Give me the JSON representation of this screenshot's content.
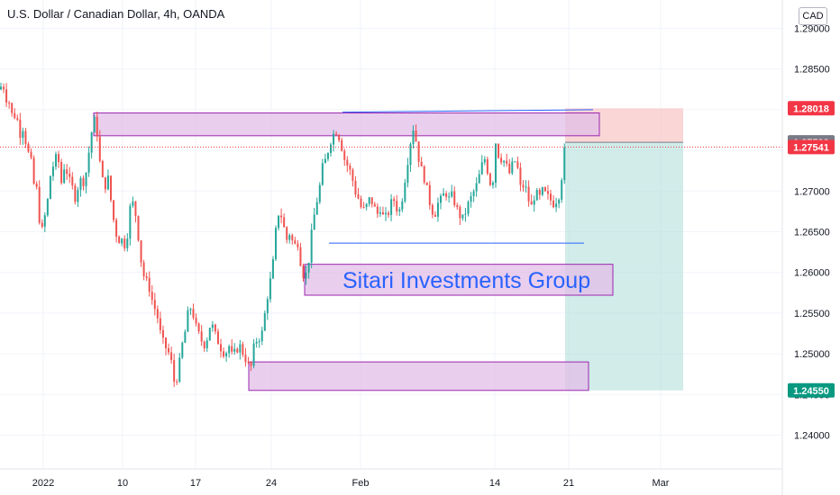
{
  "header": {
    "title": "U.S. Dollar / Canadian Dollar, 4h, OANDA",
    "currency": "CAD"
  },
  "watermark": "Sitari Investments Group",
  "colors": {
    "up": "#26a69a",
    "down": "#ef5350",
    "zone_fill": "#e1bee7",
    "zone_border": "#9c27b0",
    "trend_line": "#2962ff",
    "stop_fill": "#f8c5c5",
    "target_fill": "#b2dfdb",
    "price_label_red": "#f23645",
    "price_label_grey": "#787b86",
    "price_label_green": "#089981"
  },
  "chart_data": {
    "type": "candlestick",
    "title": "U.S. Dollar / Canadian Dollar, 4h, OANDA",
    "y_axis_ticks": [
      "1.29000",
      "1.28500",
      "1.28000",
      "1.27500",
      "1.27000",
      "1.26500",
      "1.26000",
      "1.25500",
      "1.25000",
      "1.24500",
      "1.24000"
    ],
    "y_axis_values": [
      1.29,
      1.285,
      1.28,
      1.275,
      1.27,
      1.265,
      1.26,
      1.255,
      1.25,
      1.245,
      1.24
    ],
    "ylim": [
      1.2355,
      1.2905
    ],
    "x_axis_ticks": [
      "2022",
      "10",
      "17",
      "24",
      "Feb",
      "14",
      "21",
      "Mar"
    ],
    "price_labels": [
      {
        "text": "1.28018",
        "value": 1.28018,
        "role": "stop"
      },
      {
        "text": "1.27599",
        "value": 1.27599,
        "role": "entry"
      },
      {
        "text": "1.27541",
        "value": 1.27541,
        "role": "current"
      },
      {
        "text": "1.24550",
        "value": 1.2455,
        "role": "target"
      }
    ],
    "path": [
      [
        0,
        1.2825
      ],
      [
        3,
        1.2835
      ],
      [
        6,
        1.2815
      ],
      [
        10,
        1.281
      ],
      [
        14,
        1.279
      ],
      [
        18,
        1.2795
      ],
      [
        22,
        1.277
      ],
      [
        26,
        1.278
      ],
      [
        30,
        1.275
      ],
      [
        34,
        1.274
      ],
      [
        38,
        1.2705
      ],
      [
        42,
        1.27
      ],
      [
        45,
        1.264
      ],
      [
        48,
        1.266
      ],
      [
        52,
        1.268
      ],
      [
        56,
        1.272
      ],
      [
        60,
        1.2735
      ],
      [
        64,
        1.2745
      ],
      [
        68,
        1.271
      ],
      [
        72,
        1.2735
      ],
      [
        76,
        1.2715
      ],
      [
        80,
        1.2705
      ],
      [
        84,
        1.269
      ],
      [
        88,
        1.2715
      ],
      [
        92,
        1.271
      ],
      [
        96,
        1.2725
      ],
      [
        100,
        1.276
      ],
      [
        104,
        1.279
      ],
      [
        108,
        1.277
      ],
      [
        112,
        1.272
      ],
      [
        116,
        1.2705
      ],
      [
        120,
        1.2715
      ],
      [
        124,
        1.268
      ],
      [
        128,
        1.265
      ],
      [
        132,
        1.264
      ],
      [
        136,
        1.264
      ],
      [
        140,
        1.263
      ],
      [
        143,
        1.267
      ],
      [
        146,
        1.269
      ],
      [
        150,
        1.2675
      ],
      [
        154,
        1.264
      ],
      [
        158,
        1.26
      ],
      [
        162,
        1.259
      ],
      [
        166,
        1.258
      ],
      [
        170,
        1.256
      ],
      [
        174,
        1.255
      ],
      [
        178,
        1.2525
      ],
      [
        182,
        1.251
      ],
      [
        186,
        1.2505
      ],
      [
        190,
        1.249
      ],
      [
        194,
        1.246
      ],
      [
        198,
        1.248
      ],
      [
        202,
        1.251
      ],
      [
        206,
        1.253
      ],
      [
        210,
        1.256
      ],
      [
        214,
        1.255
      ],
      [
        218,
        1.253
      ],
      [
        222,
        1.252
      ],
      [
        226,
        1.251
      ],
      [
        230,
        1.252
      ],
      [
        234,
        1.254
      ],
      [
        238,
        1.2525
      ],
      [
        242,
        1.2515
      ],
      [
        246,
        1.2505
      ],
      [
        250,
        1.25
      ],
      [
        254,
        1.251
      ],
      [
        258,
        1.2495
      ],
      [
        262,
        1.2505
      ],
      [
        266,
        1.251
      ],
      [
        270,
        1.25
      ],
      [
        274,
        1.249
      ],
      [
        278,
        1.248
      ],
      [
        282,
        1.251
      ],
      [
        286,
        1.252
      ],
      [
        290,
        1.252
      ],
      [
        294,
        1.255
      ],
      [
        298,
        1.258
      ],
      [
        302,
        1.26
      ],
      [
        306,
        1.265
      ],
      [
        310,
        1.268
      ],
      [
        314,
        1.266
      ],
      [
        318,
        1.264
      ],
      [
        322,
        1.265
      ],
      [
        326,
        1.263
      ],
      [
        330,
        1.264
      ],
      [
        334,
        1.261
      ],
      [
        338,
        1.259
      ],
      [
        342,
        1.261
      ],
      [
        346,
        1.265
      ],
      [
        350,
        1.268
      ],
      [
        354,
        1.27
      ],
      [
        358,
        1.273
      ],
      [
        362,
        1.274
      ],
      [
        366,
        1.276
      ],
      [
        370,
        1.277
      ],
      [
        374,
        1.2775
      ],
      [
        378,
        1.276
      ],
      [
        382,
        1.274
      ],
      [
        386,
        1.273
      ],
      [
        390,
        1.272
      ],
      [
        394,
        1.27
      ],
      [
        398,
        1.269
      ],
      [
        402,
        1.2675
      ],
      [
        406,
        1.268
      ],
      [
        410,
        1.269
      ],
      [
        414,
        1.2685
      ],
      [
        418,
        1.267
      ],
      [
        422,
        1.268
      ],
      [
        426,
        1.2665
      ],
      [
        430,
        1.267
      ],
      [
        434,
        1.2685
      ],
      [
        438,
        1.269
      ],
      [
        442,
        1.267
      ],
      [
        446,
        1.269
      ],
      [
        450,
        1.272
      ],
      [
        454,
        1.275
      ],
      [
        458,
        1.278
      ],
      [
        462,
        1.276
      ],
      [
        466,
        1.273
      ],
      [
        470,
        1.272
      ],
      [
        474,
        1.27
      ],
      [
        478,
        1.268
      ],
      [
        482,
        1.267
      ],
      [
        486,
        1.2685
      ],
      [
        490,
        1.269
      ],
      [
        494,
        1.27
      ],
      [
        498,
        1.269
      ],
      [
        502,
        1.2695
      ],
      [
        506,
        1.268
      ],
      [
        510,
        1.267
      ],
      [
        514,
        1.2665
      ],
      [
        518,
        1.268
      ],
      [
        522,
        1.269
      ],
      [
        526,
        1.27
      ],
      [
        530,
        1.271
      ],
      [
        534,
        1.273
      ],
      [
        538,
        1.274
      ],
      [
        542,
        1.272
      ],
      [
        546,
        1.27
      ],
      [
        550,
        1.276
      ],
      [
        554,
        1.274
      ],
      [
        558,
        1.274
      ],
      [
        562,
        1.273
      ],
      [
        566,
        1.272
      ],
      [
        570,
        1.274
      ],
      [
        574,
        1.273
      ],
      [
        578,
        1.27
      ],
      [
        582,
        1.271
      ],
      [
        586,
        1.269
      ],
      [
        590,
        1.268
      ],
      [
        594,
        1.27
      ],
      [
        598,
        1.269
      ],
      [
        602,
        1.27
      ],
      [
        606,
        1.2695
      ],
      [
        610,
        1.269
      ],
      [
        614,
        1.2685
      ],
      [
        618,
        1.269
      ],
      [
        622,
        1.27
      ],
      [
        625,
        1.2745
      ],
      [
        628,
        1.2754
      ]
    ],
    "zones": [
      {
        "name": "resistance-zone",
        "x0": 104,
        "x1": 665,
        "y_top": 1.2796,
        "y_bottom": 1.2768
      },
      {
        "name": "mid-zone",
        "x0": 338,
        "x1": 680,
        "y_top": 1.261,
        "y_bottom": 1.2572
      },
      {
        "name": "support-zone",
        "x0": 276,
        "x1": 653,
        "y_top": 1.249,
        "y_bottom": 1.2455
      }
    ],
    "trend_lines": [
      {
        "name": "upper-trend-line",
        "x0": 380,
        "y0": 1.2797,
        "x1": 658,
        "y1": 1.28
      },
      {
        "name": "lower-trend-line",
        "x0": 365,
        "y0": 1.2636,
        "x1": 648,
        "y1": 1.2636
      }
    ],
    "position": {
      "x0": 627,
      "x1": 758,
      "entry": 1.27599,
      "stop": 1.28018,
      "target": 1.2455
    },
    "x_tick_positions": [
      48,
      136,
      217,
      301,
      400,
      549,
      631,
      733
    ]
  }
}
